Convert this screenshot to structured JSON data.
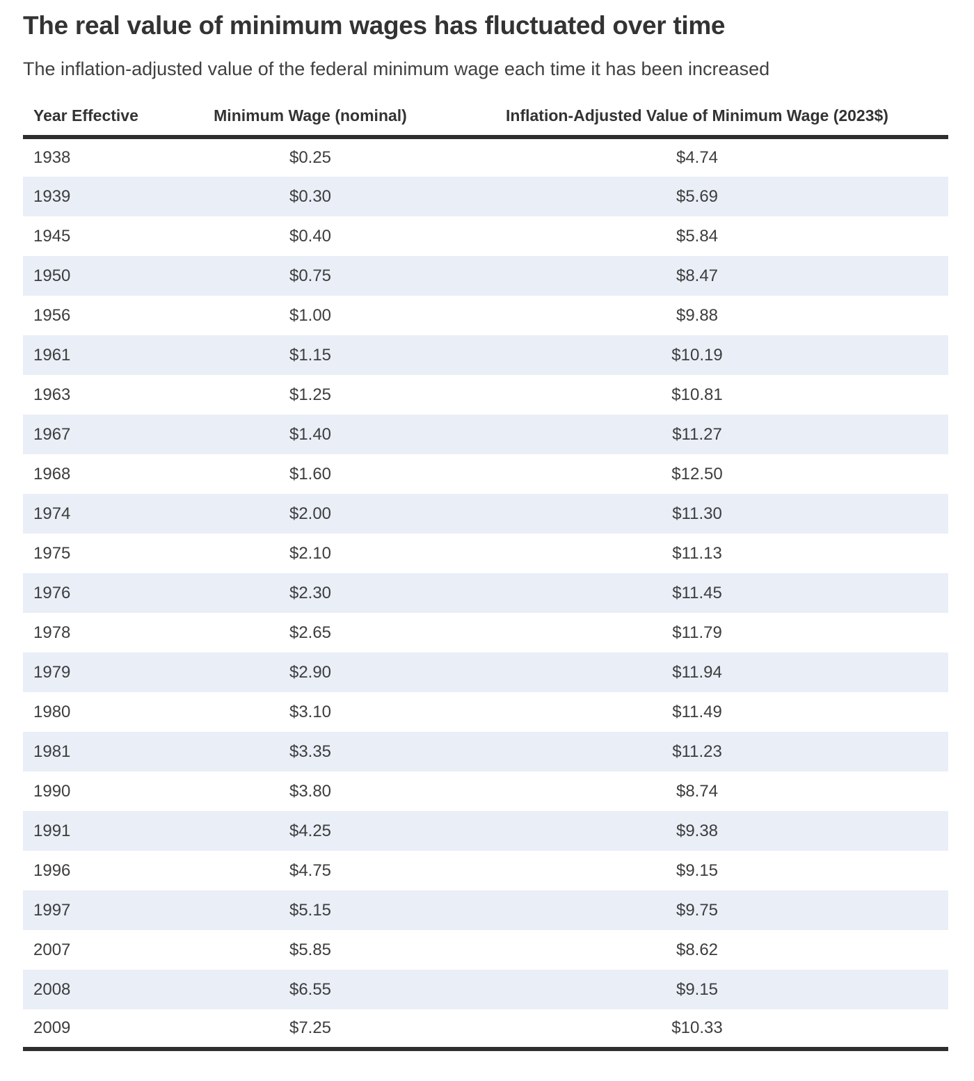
{
  "chart_data": {
    "type": "table",
    "title": "The real value of minimum wages has fluctuated over time",
    "subtitle": "The inflation-adjusted value of the federal minimum wage each time it has been increased",
    "columns": [
      "Year Effective",
      "Minimum Wage (nominal)",
      "Inflation-Adjusted Value of Minimum Wage (2023$)"
    ],
    "rows": [
      [
        "1938",
        "$0.25",
        "$4.74"
      ],
      [
        "1939",
        "$0.30",
        "$5.69"
      ],
      [
        "1945",
        "$0.40",
        "$5.84"
      ],
      [
        "1950",
        "$0.75",
        "$8.47"
      ],
      [
        "1956",
        "$1.00",
        "$9.88"
      ],
      [
        "1961",
        "$1.15",
        "$10.19"
      ],
      [
        "1963",
        "$1.25",
        "$10.81"
      ],
      [
        "1967",
        "$1.40",
        "$11.27"
      ],
      [
        "1968",
        "$1.60",
        "$12.50"
      ],
      [
        "1974",
        "$2.00",
        "$11.30"
      ],
      [
        "1975",
        "$2.10",
        "$11.13"
      ],
      [
        "1976",
        "$2.30",
        "$11.45"
      ],
      [
        "1978",
        "$2.65",
        "$11.79"
      ],
      [
        "1979",
        "$2.90",
        "$11.94"
      ],
      [
        "1980",
        "$3.10",
        "$11.49"
      ],
      [
        "1981",
        "$3.35",
        "$11.23"
      ],
      [
        "1990",
        "$3.80",
        "$8.74"
      ],
      [
        "1991",
        "$4.25",
        "$9.38"
      ],
      [
        "1996",
        "$4.75",
        "$9.15"
      ],
      [
        "1997",
        "$5.15",
        "$9.75"
      ],
      [
        "2007",
        "$5.85",
        "$8.62"
      ],
      [
        "2008",
        "$6.55",
        "$9.15"
      ],
      [
        "2009",
        "$7.25",
        "$10.33"
      ]
    ],
    "layout_hints": {
      "striped_rows": "alternating starting white",
      "legend": "none",
      "grid": "horizontal stripes only"
    },
    "colors": {
      "stripe_background": "#e9eef7",
      "row_background": "#ffffff",
      "rule": "#2e2e2e",
      "title_text": "#333333",
      "body_text": "#3d3d3d"
    }
  }
}
